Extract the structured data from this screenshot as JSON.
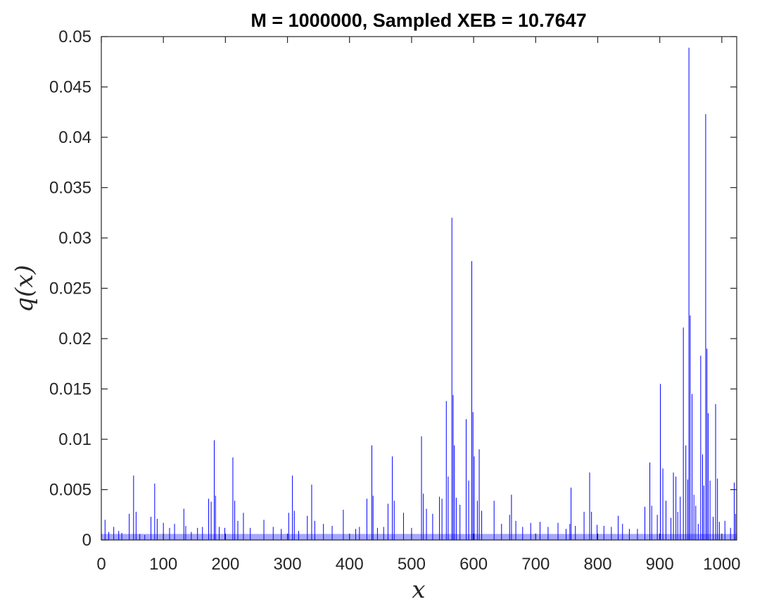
{
  "chart_data": {
    "type": "bar",
    "title": "M = 1000000, Sampled XEB = 10.7647",
    "xlabel": "x",
    "ylabel": "q(x)",
    "xlim": [
      0,
      1024
    ],
    "ylim": [
      0,
      0.05
    ],
    "xticks": [
      0,
      100,
      200,
      300,
      400,
      500,
      600,
      700,
      800,
      900,
      1000
    ],
    "xtick_labels": [
      "0",
      "100",
      "200",
      "300",
      "400",
      "500",
      "600",
      "700",
      "800",
      "900",
      "1000"
    ],
    "yticks": [
      0,
      0.005,
      0.01,
      0.015,
      0.02,
      0.025,
      0.03,
      0.035,
      0.04,
      0.045,
      0.05
    ],
    "ytick_labels": [
      "0",
      "0.005",
      "0.01",
      "0.015",
      "0.02",
      "0.025",
      "0.03",
      "0.035",
      "0.04",
      "0.045",
      "0.05"
    ],
    "grid": false,
    "bar_color": "#0000ff",
    "points": [
      [
        6,
        0.002
      ],
      [
        12,
        0.0008
      ],
      [
        20,
        0.0013
      ],
      [
        28,
        0.0009
      ],
      [
        33,
        0.0007
      ],
      [
        45,
        0.0026
      ],
      [
        52,
        0.0064
      ],
      [
        56,
        0.0028
      ],
      [
        62,
        0.0006
      ],
      [
        70,
        0.0005
      ],
      [
        80,
        0.0023
      ],
      [
        86,
        0.0056
      ],
      [
        90,
        0.0021
      ],
      [
        100,
        0.0017
      ],
      [
        110,
        0.0012
      ],
      [
        118,
        0.0016
      ],
      [
        133,
        0.0031
      ],
      [
        136,
        0.0014
      ],
      [
        145,
        0.0008
      ],
      [
        155,
        0.0012
      ],
      [
        163,
        0.0013
      ],
      [
        173,
        0.0041
      ],
      [
        177,
        0.0038
      ],
      [
        182,
        0.0099
      ],
      [
        184,
        0.0044
      ],
      [
        190,
        0.0013
      ],
      [
        199,
        0.0012
      ],
      [
        212,
        0.0082
      ],
      [
        215,
        0.0039
      ],
      [
        220,
        0.0019
      ],
      [
        229,
        0.0027
      ],
      [
        240,
        0.0012
      ],
      [
        262,
        0.002
      ],
      [
        277,
        0.0013
      ],
      [
        290,
        0.0011
      ],
      [
        302,
        0.0027
      ],
      [
        308,
        0.0064
      ],
      [
        311,
        0.0029
      ],
      [
        318,
        0.0009
      ],
      [
        332,
        0.0024
      ],
      [
        339,
        0.0055
      ],
      [
        344,
        0.0019
      ],
      [
        358,
        0.0016
      ],
      [
        372,
        0.0014
      ],
      [
        390,
        0.003
      ],
      [
        410,
        0.0011
      ],
      [
        416,
        0.0013
      ],
      [
        428,
        0.0041
      ],
      [
        436,
        0.0094
      ],
      [
        438,
        0.0044
      ],
      [
        445,
        0.0012
      ],
      [
        455,
        0.0013
      ],
      [
        462,
        0.0036
      ],
      [
        469,
        0.0083
      ],
      [
        472,
        0.0039
      ],
      [
        487,
        0.0027
      ],
      [
        500,
        0.0012
      ],
      [
        516,
        0.0103
      ],
      [
        519,
        0.0046
      ],
      [
        524,
        0.0031
      ],
      [
        534,
        0.0026
      ],
      [
        545,
        0.0043
      ],
      [
        549,
        0.0041
      ],
      [
        556,
        0.0138
      ],
      [
        559,
        0.0063
      ],
      [
        565,
        0.032
      ],
      [
        567,
        0.0144
      ],
      [
        569,
        0.0094
      ],
      [
        572,
        0.0042
      ],
      [
        578,
        0.0035
      ],
      [
        588,
        0.012
      ],
      [
        592,
        0.0059
      ],
      [
        597,
        0.0277
      ],
      [
        599,
        0.0127
      ],
      [
        601,
        0.0083
      ],
      [
        606,
        0.0039
      ],
      [
        609,
        0.009
      ],
      [
        613,
        0.0029
      ],
      [
        633,
        0.0039
      ],
      [
        645,
        0.0016
      ],
      [
        658,
        0.0025
      ],
      [
        661,
        0.0045
      ],
      [
        668,
        0.0019
      ],
      [
        679,
        0.0013
      ],
      [
        692,
        0.0017
      ],
      [
        707,
        0.0018
      ],
      [
        720,
        0.0013
      ],
      [
        736,
        0.0017
      ],
      [
        749,
        0.0011
      ],
      [
        755,
        0.0016
      ],
      [
        757,
        0.0052
      ],
      [
        764,
        0.0014
      ],
      [
        778,
        0.0028
      ],
      [
        787,
        0.0067
      ],
      [
        790,
        0.0028
      ],
      [
        799,
        0.0015
      ],
      [
        810,
        0.0014
      ],
      [
        822,
        0.0013
      ],
      [
        833,
        0.0024
      ],
      [
        840,
        0.0016
      ],
      [
        851,
        0.0011
      ],
      [
        864,
        0.0011
      ],
      [
        876,
        0.0033
      ],
      [
        884,
        0.0077
      ],
      [
        887,
        0.0034
      ],
      [
        896,
        0.0025
      ],
      [
        901,
        0.0155
      ],
      [
        905,
        0.0071
      ],
      [
        910,
        0.0039
      ],
      [
        918,
        0.0022
      ],
      [
        922,
        0.0067
      ],
      [
        926,
        0.0063
      ],
      [
        929,
        0.0028
      ],
      [
        933,
        0.0043
      ],
      [
        938,
        0.0211
      ],
      [
        942,
        0.0094
      ],
      [
        945,
        0.006
      ],
      [
        947,
        0.0489
      ],
      [
        949,
        0.0223
      ],
      [
        952,
        0.0145
      ],
      [
        955,
        0.0045
      ],
      [
        958,
        0.0034
      ],
      [
        962,
        0.0016
      ],
      [
        966,
        0.0183
      ],
      [
        969,
        0.0085
      ],
      [
        971,
        0.0054
      ],
      [
        974,
        0.0423
      ],
      [
        976,
        0.019
      ],
      [
        978,
        0.0126
      ],
      [
        981,
        0.0059
      ],
      [
        986,
        0.0023
      ],
      [
        990,
        0.0135
      ],
      [
        993,
        0.0061
      ],
      [
        996,
        0.0018
      ],
      [
        1005,
        0.0019
      ],
      [
        1014,
        0.0012
      ],
      [
        1020,
        0.0057
      ],
      [
        1022,
        0.0026
      ]
    ]
  }
}
